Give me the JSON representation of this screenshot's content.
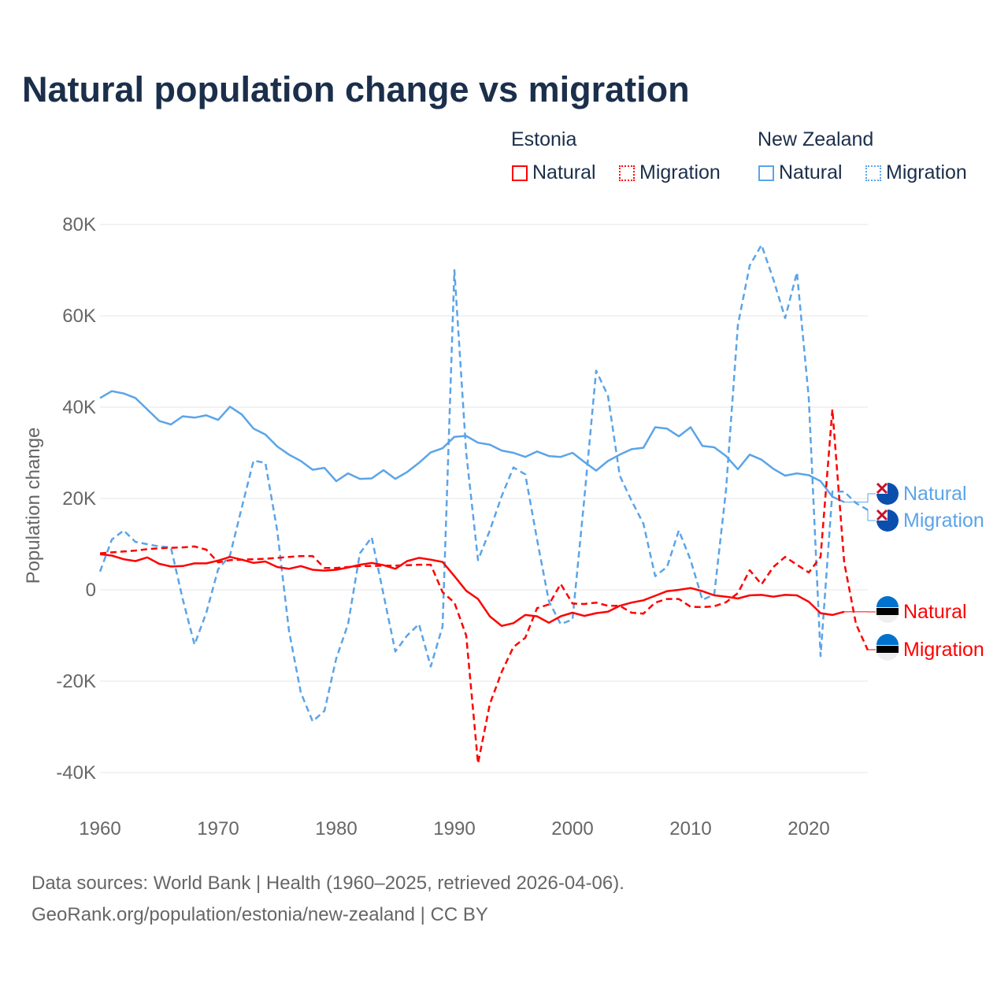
{
  "title": "Natural population change vs migration",
  "legend": {
    "groups": [
      {
        "name": "Estonia",
        "items": [
          "Natural",
          "Migration"
        ],
        "color": "#ff0000"
      },
      {
        "name": "New Zealand",
        "items": [
          "Natural",
          "Migration"
        ],
        "color": "#5ba4e8"
      }
    ]
  },
  "footer": {
    "line1": "Data sources: World Bank | Health (1960–2025, retrieved 2026-04-06).",
    "line2": "GeoRank.org/population/estonia/new-zealand | CC BY"
  },
  "chart_data": {
    "type": "line",
    "title": "Natural population change vs migration",
    "xlabel": "",
    "ylabel": "Population change",
    "xlim": [
      1960,
      2025
    ],
    "ylim": [
      -40000,
      80000
    ],
    "xticks": [
      "1960",
      "1970",
      "1980",
      "1990",
      "2000",
      "2010",
      "2020"
    ],
    "yticks": [
      {
        "v": 80000,
        "label": "80K"
      },
      {
        "v": 60000,
        "label": "60K"
      },
      {
        "v": 40000,
        "label": "40K"
      },
      {
        "v": 20000,
        "label": "20K"
      },
      {
        "v": 0,
        "label": "0"
      },
      {
        "v": -20000,
        "label": "-20K"
      },
      {
        "v": -40000,
        "label": "-40K"
      }
    ],
    "grid": true,
    "legend_placement": "top-right",
    "series": [
      {
        "name": "New Zealand Natural",
        "end_label": "Natural",
        "country": "New Zealand",
        "dashed": false,
        "color": "#5ba4e8",
        "start_year": 1960,
        "values": [
          42,
          43.5,
          43,
          42,
          39.5,
          37,
          36.2,
          38,
          37.7,
          38.2,
          37.2,
          40.1,
          38.4,
          35.3,
          34,
          31.4,
          29.6,
          28.2,
          26.3,
          26.7,
          23.8,
          25.5,
          24.3,
          24.4,
          26.2,
          24.3,
          25.8,
          27.8,
          30.1,
          31,
          33.5,
          33.7,
          32.2,
          31.8,
          30.5,
          30,
          29.1,
          30.3,
          29.3,
          29.1,
          30,
          28,
          26.1,
          28.2,
          29.6,
          30.8,
          31.1,
          35.6,
          35.3,
          33.6,
          35.6,
          31.5,
          31.2,
          29.3,
          26.4,
          29.6,
          28.5,
          26.5,
          25,
          25.5,
          25.1,
          23.8,
          20.4,
          19.2
        ]
      },
      {
        "name": "New Zealand Migration",
        "end_label": "Migration",
        "country": "New Zealand",
        "dashed": true,
        "color": "#5ba4e8",
        "start_year": 1960,
        "values": [
          4,
          11,
          13,
          10.5,
          10,
          9.5,
          9.3,
          -2,
          -12,
          -5,
          4.5,
          7.5,
          18,
          28.3,
          27.8,
          13,
          -9,
          -22.5,
          -28.8,
          -26.5,
          -15,
          -7.5,
          8,
          11.5,
          -1,
          -13.5,
          -10,
          -7.5,
          -16.8,
          -8,
          70,
          30,
          6.5,
          13,
          20.5,
          26.8,
          25.3,
          11,
          -2.5,
          -7.5,
          -6.5,
          20,
          48,
          42.5,
          25,
          19.5,
          14.5,
          3,
          5,
          13,
          6.5,
          -2.2,
          -1,
          22,
          58,
          71,
          75.5,
          68,
          59.5,
          69.5,
          42,
          -14.5,
          21.5,
          21.5,
          19,
          17.5
        ]
      },
      {
        "name": "Estonia Natural",
        "end_label": "Natural",
        "country": "Estonia",
        "dashed": false,
        "color": "#ff0000",
        "start_year": 1960,
        "values": [
          7.8,
          7.5,
          6.7,
          6.3,
          7.1,
          5.7,
          5.1,
          5.2,
          5.8,
          5.8,
          6.4,
          7.2,
          6.6,
          5.9,
          6.2,
          5,
          4.6,
          5.2,
          4.4,
          4.2,
          4.4,
          4.9,
          5.5,
          5.9,
          5.4,
          4.6,
          6.3,
          7,
          6.6,
          6.1,
          3,
          -0.2,
          -2,
          -5.8,
          -7.9,
          -7.3,
          -5.5,
          -5.8,
          -7.2,
          -5.8,
          -5,
          -5.7,
          -5.1,
          -4.8,
          -3.5,
          -2.8,
          -2.3,
          -1.3,
          -0.3,
          0,
          0.4,
          -0.3,
          -1.2,
          -1.5,
          -1.9,
          -1.2,
          -1.1,
          -1.5,
          -1.1,
          -1.2,
          -2.6,
          -5.1,
          -5.5,
          -4.8
        ]
      },
      {
        "name": "Estonia Migration",
        "end_label": "Migration",
        "country": "Estonia",
        "dashed": true,
        "color": "#ff0000",
        "start_year": 1960,
        "values": [
          8,
          8.2,
          8.4,
          8.6,
          8.9,
          9.1,
          9.2,
          9.3,
          9.5,
          8.8,
          6,
          6.5,
          6.6,
          6.7,
          6.8,
          7,
          7.2,
          7.4,
          7.4,
          4.8,
          4.8,
          5,
          5.2,
          5.2,
          5.3,
          5.3,
          5.4,
          5.5,
          5.5,
          -0.5,
          -2.8,
          -10,
          -38,
          -25,
          -18,
          -12.5,
          -10.5,
          -4,
          -3.2,
          1.3,
          -3,
          -3.1,
          -2.8,
          -3.5,
          -3.5,
          -5,
          -5.2,
          -2.8,
          -2,
          -2,
          -3.7,
          -3.8,
          -3.6,
          -2.7,
          -0.7,
          4.3,
          1.2,
          5,
          7.2,
          5.5,
          3.8,
          7.2,
          39.5,
          6,
          -7.5,
          -13.2
        ]
      }
    ],
    "value_unit": "thousands"
  }
}
